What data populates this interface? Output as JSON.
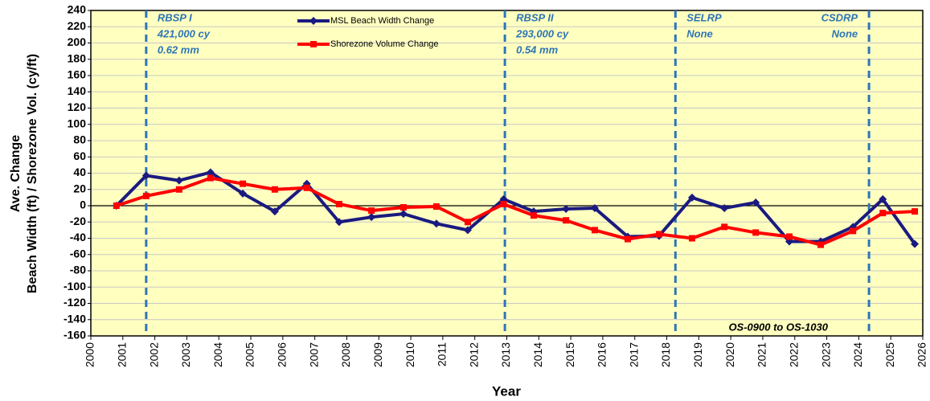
{
  "chart_data": {
    "type": "line",
    "xlabel": "Year",
    "ylabel": [
      "Ave. Change",
      "Beach Width (ft) / Shorezone Vol. (cy/ft)"
    ],
    "annotation": "OS-0900 to OS-1030",
    "xlim": [
      2000,
      2026
    ],
    "xticks": [
      2000,
      2001,
      2002,
      2003,
      2004,
      2005,
      2006,
      2007,
      2008,
      2009,
      2010,
      2011,
      2012,
      2013,
      2014,
      2015,
      2016,
      2017,
      2018,
      2019,
      2020,
      2021,
      2022,
      2023,
      2024,
      2025,
      2026
    ],
    "ylim": [
      -160,
      240
    ],
    "yticks": [
      -160,
      -140,
      -120,
      -100,
      -80,
      -60,
      -40,
      -20,
      0,
      20,
      40,
      60,
      80,
      100,
      120,
      140,
      160,
      180,
      200,
      220,
      240
    ],
    "grid": true,
    "background": "#ffffc0",
    "x": [
      2000.8,
      2001.73,
      2002.76,
      2003.74,
      2004.75,
      2005.75,
      2006.75,
      2007.76,
      2008.77,
      2009.77,
      2010.8,
      2011.78,
      2012.9,
      2013.84,
      2014.85,
      2015.75,
      2016.78,
      2017.76,
      2018.79,
      2019.8,
      2020.78,
      2021.83,
      2022.81,
      2023.82,
      2024.75,
      2025.75
    ],
    "series": [
      {
        "name": "MSL Beach Width Change",
        "color": "#1a1a80",
        "marker": "diamond",
        "values": [
          0,
          37,
          31,
          41,
          15,
          -7,
          27,
          -20,
          -14,
          -10,
          -22,
          -30,
          8,
          -7,
          -4,
          -3,
          -38,
          -37,
          10,
          -3,
          4,
          -44,
          -44,
          -26,
          8,
          -47
        ]
      },
      {
        "name": "Shorezone Volume Change",
        "color": "#ff0000",
        "marker": "square",
        "values": [
          0,
          12,
          20,
          34,
          27,
          20,
          22,
          2,
          -6,
          -2,
          -1,
          -20,
          2,
          -12,
          -18,
          -30,
          -41,
          -35,
          -40,
          -26,
          -33,
          -38,
          -48,
          -31,
          -9,
          -7
        ]
      }
    ],
    "events": [
      {
        "x": 2001.73,
        "lines": [
          "RBSP I",
          "421,000 cy",
          "0.62 mm"
        ]
      },
      {
        "x": 2012.94,
        "lines": [
          "RBSP II",
          "293,000 cy",
          "0.54 mm"
        ]
      },
      {
        "x": 2018.27,
        "lines": [
          "SELRP",
          "None"
        ]
      },
      {
        "x": 2024.32,
        "lines": [
          "CSDRP",
          "None"
        ]
      }
    ]
  }
}
